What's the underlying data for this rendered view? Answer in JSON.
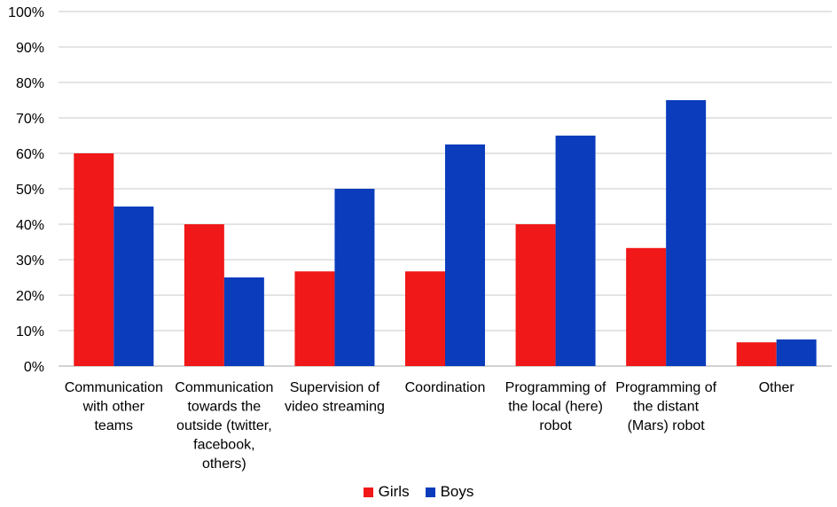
{
  "chart_data": {
    "type": "bar",
    "categories": [
      [
        "Communication",
        "with other",
        "teams"
      ],
      [
        "Communication",
        "towards the",
        "outside (twitter,",
        "facebook,",
        "others)"
      ],
      [
        "Supervision of",
        "video streaming"
      ],
      [
        "Coordination"
      ],
      [
        "Programming of",
        "the local (here)",
        "robot"
      ],
      [
        "Programming of",
        "the distant",
        "(Mars) robot"
      ],
      [
        "Other"
      ]
    ],
    "series": [
      {
        "name": "Girls",
        "color": "#F01818",
        "values": [
          60,
          40,
          26.7,
          26.7,
          40,
          33.3,
          6.7
        ]
      },
      {
        "name": "Boys",
        "color": "#0A3CBC",
        "values": [
          45,
          25,
          50,
          62.5,
          65,
          75,
          7.5
        ]
      }
    ],
    "ylim": [
      0,
      100
    ],
    "yticks": [
      "0%",
      "10%",
      "20%",
      "30%",
      "40%",
      "50%",
      "60%",
      "70%",
      "80%",
      "90%",
      "100%"
    ],
    "grid": true,
    "legend_position": "bottom",
    "title": "",
    "xlabel": "",
    "ylabel": ""
  }
}
